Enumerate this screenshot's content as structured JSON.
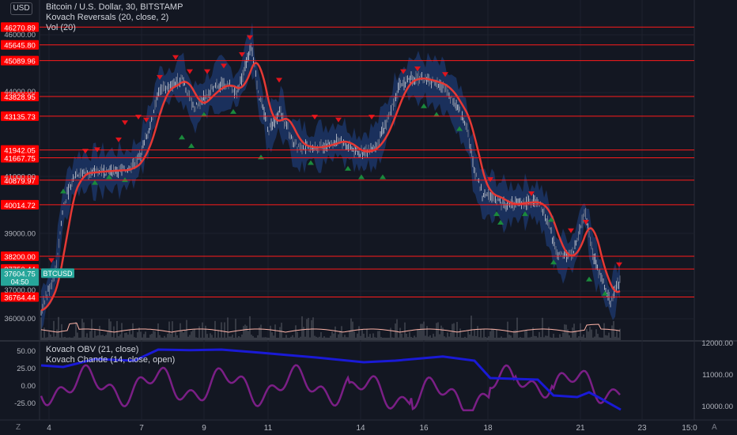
{
  "chart_title": "Bitcoin / U.S. Dollar, 30, BITSTAMP",
  "currency_badge": "USD",
  "indicators": {
    "kovach_reversals": "Kovach Reversals (20, close, 2)",
    "vol": "Vol (20)",
    "kovach_obv": "Kovach OBV (21, close)",
    "kovach_chande": "Kovach Chande (14, close, open)"
  },
  "corner_left": "Z",
  "corner_right": "A",
  "colors": {
    "background": "#131722",
    "level_line": "#ff1b1b",
    "level_label_bg": "#ff0000",
    "price_badge": "#26a69a",
    "ma_line": "#e53935",
    "band": "#1e3a70",
    "obv": "#1a1ad6",
    "chande": "#7b1f86",
    "up_marker": "#1b8a3c",
    "down_marker": "#e0141c"
  },
  "price_axis_ticks": [
    "46000.00",
    "44000.00",
    "41000.00",
    "39000.00",
    "37000.00",
    "36000.00"
  ],
  "level_labels": [
    "46270.89",
    "45645.80",
    "45089.96",
    "43828.95",
    "43135.73",
    "41942.05",
    "41667.75",
    "40879.97",
    "40014.72",
    "38200.00",
    "37750.44",
    "36764.44"
  ],
  "current_price": "37604.75",
  "countdown": "04:50",
  "symbol_badge": "BTCUSD",
  "lower_left_ticks": [
    "50.00",
    "25.00",
    "0.00",
    "-25.00"
  ],
  "lower_right_ticks": [
    "12000.00",
    "11000.00",
    "10000.00"
  ],
  "time_ticks": [
    "4",
    "7",
    "9",
    "11",
    "14",
    "16",
    "18",
    "21",
    "23",
    "15:0"
  ],
  "chart_data": [
    {
      "type": "line",
      "title": "Bitcoin / U.S. Dollar, 30, BITSTAMP",
      "x": [
        "4",
        "7",
        "9",
        "11",
        "14",
        "16",
        "18",
        "21",
        "23"
      ],
      "series": [
        {
          "name": "Kovach Reversals (20, close, 2)",
          "values": [
            37000,
            43700,
            44600,
            43400,
            41800,
            44200,
            40100,
            38100,
            37000
          ]
        }
      ],
      "horizontal_levels": [
        46270.89,
        45645.8,
        45089.96,
        43828.95,
        43135.73,
        41942.05,
        41667.75,
        40879.97,
        40014.72,
        38200.0,
        37750.44,
        36764.44
      ],
      "last_price": 37604.75
    },
    {
      "type": "line",
      "x": [
        "4",
        "7",
        "9",
        "11",
        "14",
        "16",
        "18",
        "21",
        "23"
      ],
      "series": [
        {
          "name": "Kovach OBV (21, close)",
          "values": [
            11300,
            11600,
            12000,
            11900,
            11500,
            11600,
            10800,
            10250,
            9900
          ]
        },
        {
          "name": "Kovach Chande (14, close, open)",
          "values": [
            5,
            10,
            45,
            20,
            30,
            5,
            -20,
            15,
            10
          ]
        }
      ],
      "ylim_left": [
        -40,
        60
      ],
      "ylim_right": [
        9800,
        12100
      ]
    }
  ]
}
